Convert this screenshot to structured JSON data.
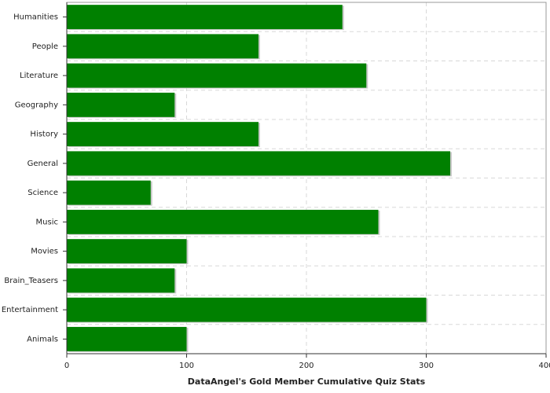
{
  "chart_data": {
    "type": "hbar",
    "xlabel": "DataAngel's Gold Member Cumulative Quiz Stats",
    "categories": [
      "Humanities",
      "People",
      "Literature",
      "Geography",
      "History",
      "General",
      "Science",
      "Music",
      "Movies",
      "Brain_Teasers",
      "Entertainment",
      "Animals"
    ],
    "values": [
      230,
      160,
      250,
      90,
      160,
      320,
      70,
      260,
      100,
      90,
      300,
      100
    ],
    "color": "#008000",
    "xlim": [
      0,
      400
    ],
    "xticks": [
      0,
      100,
      200,
      300,
      400
    ],
    "grid": true
  }
}
